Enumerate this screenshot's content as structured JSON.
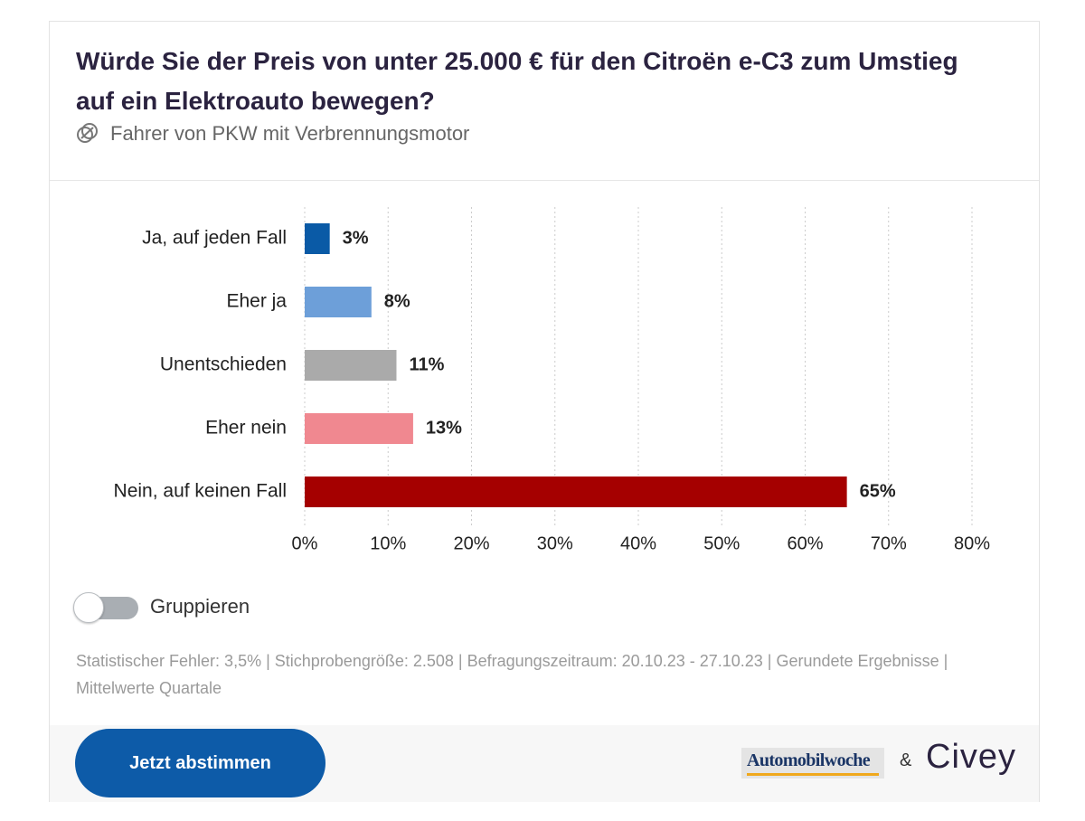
{
  "header": {
    "title": "Würde Sie der Preis von unter 25.000 € für den Citroën e-C3 zum Umstieg auf ein Elektroauto bewegen?",
    "subtitle": "Fahrer von PKW mit Verbrennungsmotor",
    "subtitle_icon": "target-group-icon"
  },
  "chart_data": {
    "type": "bar",
    "orientation": "horizontal",
    "categories": [
      "Ja, auf jeden Fall",
      "Eher ja",
      "Unentschieden",
      "Eher nein",
      "Nein, auf keinen Fall"
    ],
    "values": [
      3,
      8,
      11,
      13,
      65
    ],
    "value_labels": [
      "3%",
      "8%",
      "11%",
      "13%",
      "65%"
    ],
    "colors": [
      "#0a5aa6",
      "#6d9fd9",
      "#aaaaaa",
      "#f08890",
      "#a50000"
    ],
    "xlim": [
      0,
      80
    ],
    "x_ticks": [
      0,
      10,
      20,
      30,
      40,
      50,
      60,
      70,
      80
    ],
    "x_tick_labels": [
      "0%",
      "10%",
      "20%",
      "30%",
      "40%",
      "50%",
      "60%",
      "70%",
      "80%"
    ],
    "grid": "vertical dotted",
    "title": "",
    "xlabel": "",
    "ylabel": ""
  },
  "controls": {
    "group_toggle_label": "Gruppieren",
    "group_toggle_on": false
  },
  "footnote": "Statistischer Fehler: 3,5% | Stichprobengröße: 2.508 | Befragungszeitraum: 20.10.23 - 27.10.23 | Gerundete Ergebnisse | Mittelwerte Quartale",
  "footer": {
    "vote_button_label": "Jetzt abstimmen",
    "partner_logo_text": "Automobilwoche",
    "ampersand": "&",
    "brand_logo_text": "Civey"
  },
  "colors": {
    "title": "#2b2340",
    "button": "#0d5ba8",
    "partner_underline": "#f0a81c"
  }
}
